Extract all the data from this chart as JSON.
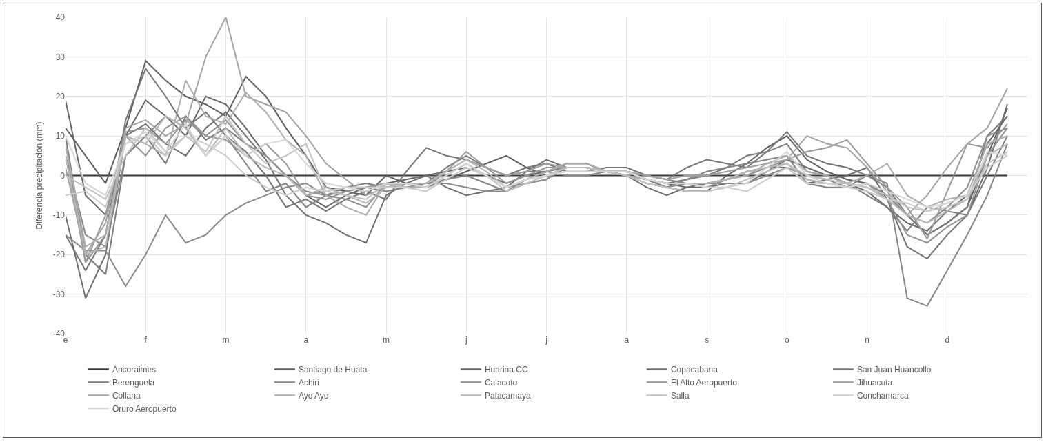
{
  "chart_data": {
    "type": "line",
    "ylabel": "Diferencia precipitación (mm)",
    "categories": [
      "e",
      null,
      null,
      null,
      "f",
      null,
      null,
      null,
      "m",
      null,
      null,
      null,
      "a",
      null,
      null,
      null,
      "m",
      null,
      null,
      null,
      "j",
      null,
      null,
      null,
      "j",
      null,
      null,
      null,
      "a",
      null,
      null,
      null,
      "s",
      null,
      null,
      null,
      "o",
      null,
      null,
      null,
      "n",
      null,
      null,
      null,
      "d",
      null,
      null,
      null
    ],
    "ylim": [
      -40,
      40
    ],
    "yticks": [
      -40,
      -30,
      -20,
      -10,
      0,
      10,
      20,
      30,
      40
    ],
    "grid": true,
    "legend": "bottom",
    "marker": "none",
    "line_style": "solid",
    "series": [
      {
        "name": "Ancoraimes",
        "color": "#3a3a3a",
        "values": [
          0,
          0,
          0,
          0,
          0,
          0,
          0,
          0,
          0,
          0,
          0,
          0,
          0,
          0,
          0,
          0,
          0,
          0,
          0,
          0,
          0,
          0,
          0,
          0,
          0,
          0,
          0,
          0,
          0,
          0,
          0,
          0,
          0,
          0,
          0,
          0,
          0,
          0,
          0,
          0,
          0,
          0,
          0,
          0,
          0,
          0,
          0,
          0
        ]
      },
      {
        "name": "Santiago de Huata",
        "color": "#5e5e5e",
        "values": [
          12,
          5,
          -2,
          12,
          29,
          24,
          20,
          18,
          15,
          25,
          20,
          12,
          5,
          -3,
          -4,
          -5,
          0,
          -2,
          -3,
          -1,
          1,
          3,
          5,
          2,
          0,
          2,
          2,
          1,
          1,
          -1,
          -3,
          -4,
          -4,
          0,
          3,
          7,
          10,
          4,
          1,
          -1,
          -2,
          -5,
          -10,
          -15,
          -12,
          -8,
          5,
          17
        ]
      },
      {
        "name": "Huarina CC",
        "color": "#666666",
        "values": [
          19,
          -5,
          -10,
          10,
          19,
          15,
          10,
          20,
          18,
          12,
          5,
          0,
          -5,
          -8,
          -5,
          -3,
          -2,
          -1,
          0,
          1,
          2,
          0,
          -2,
          0,
          1,
          3,
          3,
          1,
          0,
          -1,
          -2,
          -3,
          -3,
          -2,
          -2,
          1,
          4,
          2,
          0,
          -2,
          -4,
          -8,
          -12,
          -14,
          -9,
          -5,
          8,
          15
        ]
      },
      {
        "name": "Copacabana",
        "color": "#6e6e6e",
        "values": [
          -10,
          -31,
          -20,
          10,
          13,
          8,
          5,
          12,
          16,
          10,
          4,
          -5,
          -10,
          -12,
          -15,
          -17,
          -5,
          -2,
          0,
          -3,
          -5,
          -4,
          -3,
          1,
          4,
          2,
          2,
          1,
          0,
          -3,
          -5,
          -3,
          -2,
          -1,
          1,
          2,
          2,
          -2,
          -1,
          0,
          2,
          -6,
          -18,
          -21,
          -15,
          -10,
          2,
          18
        ]
      },
      {
        "name": "San Juan Huancollo",
        "color": "#757575",
        "values": [
          -15,
          -24,
          -15,
          14,
          27,
          20,
          12,
          16,
          10,
          6,
          0,
          -8,
          -6,
          -9,
          -6,
          -4,
          -6,
          1,
          7,
          5,
          4,
          2,
          0,
          2,
          3,
          1,
          1,
          2,
          2,
          0,
          -1,
          2,
          4,
          3,
          2,
          6,
          11,
          5,
          3,
          2,
          0,
          -3,
          -10,
          -15,
          -12,
          -8,
          10,
          15
        ]
      },
      {
        "name": "Berenguela",
        "color": "#7c7c7c",
        "values": [
          10,
          -20,
          -25,
          5,
          10,
          3,
          15,
          9,
          12,
          8,
          5,
          0,
          -4,
          -5,
          -3,
          -2,
          -3,
          -2,
          -2,
          2,
          5,
          2,
          0,
          1,
          1,
          2,
          2,
          1,
          1,
          -1,
          -2,
          -1,
          0,
          2,
          5,
          6,
          8,
          1,
          0,
          -2,
          -5,
          -8,
          -14,
          -8,
          -9,
          -10,
          0,
          10
        ]
      },
      {
        "name": "Achiri",
        "color": "#848484",
        "values": [
          5,
          -15,
          -18,
          5,
          10,
          15,
          12,
          5,
          10,
          3,
          -4,
          -2,
          -8,
          -5,
          -4,
          -3,
          -4,
          -3,
          -2,
          -1,
          0,
          -2,
          -4,
          -2,
          -1,
          2,
          2,
          1,
          0,
          -1,
          -3,
          -1,
          1,
          2,
          3,
          4,
          5,
          -2,
          -3,
          -3,
          0,
          -2,
          -31,
          -33,
          -24,
          -15,
          -5,
          8
        ]
      },
      {
        "name": "Calacoto",
        "color": "#8a8a8a",
        "values": [
          -15,
          -19,
          -19,
          -28,
          -20,
          -10,
          -17,
          -15,
          -10,
          -7,
          -5,
          -3,
          -2,
          -5,
          -6,
          -8,
          -2,
          -2,
          -2,
          -2,
          -3,
          -4,
          -4,
          -1,
          1,
          0,
          0,
          1,
          1,
          0,
          -1,
          -2,
          -2,
          -2,
          -2,
          0,
          2,
          0,
          -1,
          -3,
          -2,
          -5,
          -10,
          -12,
          -8,
          -3,
          10,
          12
        ]
      },
      {
        "name": "El Alto Aeropuerto",
        "color": "#919191",
        "values": [
          8,
          -22,
          -15,
          10,
          5,
          12,
          15,
          10,
          14,
          8,
          5,
          0,
          -5,
          -6,
          -4,
          -3,
          -2,
          -3,
          -3,
          0,
          3,
          0,
          -3,
          -2,
          -1,
          3,
          3,
          1,
          0,
          -2,
          -3,
          -2,
          -2,
          -1,
          0,
          2,
          3,
          -1,
          -2,
          -3,
          -2,
          -6,
          -15,
          -17,
          -13,
          -10,
          5,
          12
        ]
      },
      {
        "name": "Jihuacuta",
        "color": "#999999",
        "values": [
          5,
          -22,
          -10,
          11,
          12,
          8,
          14,
          10,
          9,
          5,
          8,
          3,
          -5,
          -4,
          -3,
          -3,
          -2,
          -3,
          -3,
          1,
          6,
          2,
          -2,
          0,
          2,
          2,
          2,
          1,
          1,
          -1,
          -2,
          -2,
          -3,
          -1,
          1,
          2,
          4,
          6,
          7,
          9,
          3,
          -3,
          -8,
          -16,
          -4,
          8,
          7,
          13
        ]
      },
      {
        "name": "Collana",
        "color": "#a3a3a3",
        "values": [
          2,
          -20,
          -12,
          12,
          14,
          10,
          13,
          30,
          40,
          20,
          18,
          16,
          10,
          3,
          -1,
          -5,
          -3,
          -2,
          -2,
          1,
          4,
          2,
          0,
          1,
          3,
          2,
          2,
          1,
          1,
          0,
          -1,
          0,
          0,
          1,
          2,
          3,
          4,
          10,
          8,
          7,
          2,
          -4,
          -10,
          -5,
          2,
          8,
          12,
          22
        ]
      },
      {
        "name": "Ayo Ayo",
        "color": "#adadad",
        "values": [
          8,
          -18,
          -15,
          10,
          8,
          5,
          24,
          15,
          13,
          21,
          16,
          9,
          5,
          -5,
          -8,
          -10,
          -2,
          -3,
          -3,
          0,
          3,
          0,
          -3,
          -1,
          1,
          3,
          3,
          1,
          0,
          -1,
          -2,
          -2,
          -2,
          -1,
          0,
          3,
          5,
          1,
          0,
          -2,
          0,
          3,
          -5,
          -8,
          -6,
          -5,
          8,
          10
        ]
      },
      {
        "name": "Patacamaya",
        "color": "#b8b8b8",
        "values": [
          5,
          -20,
          -18,
          10,
          8,
          15,
          12,
          5,
          12,
          5,
          2,
          0,
          -5,
          -3,
          -5,
          -7,
          -3,
          -2,
          -2,
          1,
          4,
          1,
          -3,
          -1,
          0,
          2,
          2,
          1,
          1,
          -1,
          -2,
          -2,
          -2,
          -1,
          1,
          2,
          3,
          -1,
          -2,
          -2,
          -3,
          -6,
          -10,
          -12,
          -9,
          -6,
          5,
          8
        ]
      },
      {
        "name": "Salla",
        "color": "#c2c2c2",
        "values": [
          0,
          -3,
          -6,
          5,
          12,
          6,
          10,
          6,
          15,
          8,
          3,
          5,
          8,
          -4,
          -5,
          -6,
          -2,
          -3,
          -4,
          0,
          3,
          0,
          -4,
          -2,
          0,
          2,
          2,
          1,
          0,
          -2,
          -3,
          -4,
          -4,
          -3,
          -1,
          1,
          3,
          0,
          -1,
          -2,
          -3,
          -5,
          -8,
          -9,
          -8,
          -6,
          3,
          6
        ]
      },
      {
        "name": "Conchamarca",
        "color": "#cccccc",
        "values": [
          -5,
          -4,
          -8,
          8,
          10,
          5,
          10,
          8,
          5,
          0,
          -3,
          -5,
          -3,
          -4,
          -3,
          -3,
          -3,
          -3,
          -4,
          -1,
          2,
          0,
          -3,
          -1,
          0,
          1,
          1,
          1,
          1,
          -1,
          -2,
          -2,
          -3,
          -3,
          -4,
          -1,
          2,
          -2,
          -2,
          -3,
          -4,
          -6,
          -7,
          -9,
          -7,
          -5,
          2,
          5
        ]
      },
      {
        "name": "Oruro Aeropuerto",
        "color": "#d6d6d6",
        "values": [
          10,
          -2,
          -5,
          8,
          11,
          6,
          13,
          5,
          10,
          5,
          8,
          9,
          3,
          -2,
          -3,
          -4,
          -2,
          -2,
          -3,
          0,
          3,
          0,
          -3,
          -1,
          0,
          1,
          1,
          1,
          1,
          -1,
          -2,
          -2,
          -3,
          -3,
          -2,
          2,
          6,
          0,
          -2,
          -3,
          -2,
          -4,
          -6,
          -8,
          -7,
          -5,
          6,
          5
        ]
      }
    ]
  }
}
